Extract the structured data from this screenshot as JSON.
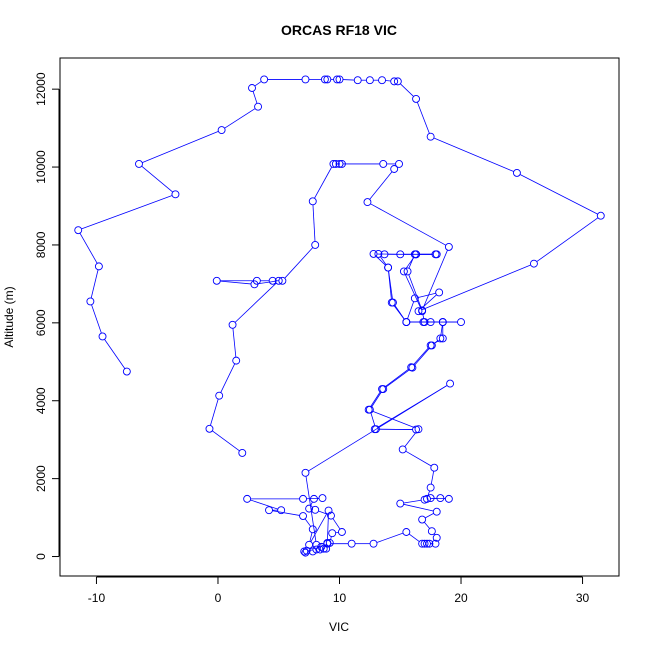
{
  "chart_data": {
    "type": "line",
    "title": "ORCAS RF18 VIC",
    "xlabel": "VIC",
    "ylabel": "Altitude (m)",
    "xlim": [
      -13,
      33
    ],
    "ylim": [
      -500,
      12800
    ],
    "x_ticks": [
      -10,
      0,
      10,
      20,
      30
    ],
    "y_ticks": [
      0,
      2000,
      4000,
      6000,
      8000,
      10000,
      12000
    ],
    "grid": false,
    "legend": "none",
    "colors": {
      "series": "#0000ff",
      "axis": "#000000"
    },
    "series": [
      {
        "points": [
          [
            -7.5,
            4750
          ],
          [
            -9.5,
            5650
          ],
          [
            -10.5,
            6550
          ],
          [
            -9.8,
            7450
          ],
          [
            -11.5,
            8380
          ],
          [
            -3.5,
            9300
          ],
          [
            -6.5,
            10080
          ],
          [
            0.3,
            10950
          ],
          [
            3.3,
            11550
          ],
          [
            2.8,
            12030
          ],
          [
            3.8,
            12250
          ],
          [
            7.2,
            12250
          ],
          [
            8.8,
            12250
          ],
          [
            9.0,
            12250
          ],
          [
            9.8,
            12250
          ],
          [
            10.0,
            12250
          ],
          [
            11.5,
            12230
          ],
          [
            12.5,
            12230
          ],
          [
            13.5,
            12230
          ],
          [
            14.5,
            12200
          ],
          [
            14.8,
            12200
          ],
          [
            16.3,
            11750
          ],
          [
            17.5,
            10780
          ],
          [
            24.6,
            9850
          ],
          [
            31.5,
            8750
          ],
          [
            26.0,
            7520
          ],
          [
            16.5,
            6300
          ],
          [
            18.2,
            6780
          ],
          [
            16.2,
            6630
          ],
          [
            15.5,
            6020
          ],
          [
            17.5,
            6020
          ],
          [
            20.0,
            6020
          ],
          [
            18.5,
            6020
          ],
          [
            17.0,
            6020
          ],
          [
            16.8,
            6300
          ],
          [
            15.3,
            7320
          ],
          [
            16.3,
            7760
          ],
          [
            17.9,
            7760
          ],
          [
            16.3,
            7760
          ],
          [
            13.7,
            7760
          ],
          [
            12.8,
            7770
          ],
          [
            14.0,
            7420
          ],
          [
            14.3,
            6520
          ],
          [
            15.5,
            6020
          ],
          [
            18.5,
            6020
          ],
          [
            18.5,
            5600
          ],
          [
            17.5,
            5420
          ],
          [
            15.9,
            4860
          ],
          [
            13.5,
            4300
          ],
          [
            12.4,
            3770
          ],
          [
            16.5,
            3270
          ],
          [
            15.2,
            2750
          ],
          [
            17.8,
            2280
          ],
          [
            17.5,
            1770
          ],
          [
            17.2,
            1480
          ],
          [
            18.3,
            1500
          ],
          [
            19.0,
            1480
          ],
          [
            17.5,
            1500
          ],
          [
            17.0,
            1460
          ],
          [
            15.0,
            1360
          ],
          [
            18.0,
            1150
          ],
          [
            16.8,
            950
          ],
          [
            17.6,
            650
          ],
          [
            18.0,
            480
          ],
          [
            17.9,
            330
          ],
          [
            17.2,
            330
          ],
          [
            17.0,
            330
          ],
          [
            17.4,
            330
          ],
          [
            16.8,
            330
          ],
          [
            15.5,
            630
          ],
          [
            12.8,
            330
          ],
          [
            11.0,
            330
          ],
          [
            9.0,
            330
          ],
          [
            8.7,
            200
          ],
          [
            8.1,
            180
          ],
          [
            7.3,
            150
          ],
          [
            7.1,
            130
          ],
          [
            7.2,
            100
          ],
          [
            7.8,
            130
          ],
          [
            8.4,
            180
          ],
          [
            8.9,
            200
          ],
          [
            8.5,
            250
          ],
          [
            9.2,
            350
          ],
          [
            9.4,
            600
          ],
          [
            10.2,
            630
          ],
          [
            9.3,
            1050
          ],
          [
            8.0,
            1200
          ],
          [
            7.5,
            1230
          ],
          [
            7.9,
            1480
          ],
          [
            8.6,
            1500
          ],
          [
            7.0,
            1480
          ],
          [
            2.4,
            1480
          ],
          [
            5.2,
            1190
          ],
          [
            4.2,
            1190
          ],
          [
            7.0,
            1040
          ],
          [
            7.8,
            700
          ],
          [
            7.5,
            300
          ],
          [
            9.1,
            1180
          ],
          [
            9.0,
            350
          ],
          [
            8.1,
            300
          ],
          [
            7.2,
            2150
          ],
          [
            19.1,
            4440
          ],
          [
            12.9,
            3270
          ],
          [
            16.3,
            3260
          ],
          [
            13.0,
            3270
          ],
          [
            12.5,
            3770
          ],
          [
            13.6,
            4300
          ],
          [
            16.0,
            4850
          ],
          [
            17.6,
            5420
          ],
          [
            18.3,
            5600
          ],
          [
            18.5,
            6020
          ],
          [
            16.9,
            6020
          ],
          [
            15.5,
            6020
          ],
          [
            14.4,
            6520
          ],
          [
            14.0,
            7420
          ],
          [
            13.2,
            7770
          ],
          [
            15.0,
            7760
          ],
          [
            18.0,
            7760
          ],
          [
            16.2,
            7760
          ],
          [
            15.6,
            7320
          ],
          [
            16.8,
            6320
          ],
          [
            19.0,
            7950
          ],
          [
            12.3,
            9100
          ],
          [
            14.5,
            9950
          ],
          [
            14.9,
            10080
          ],
          [
            13.6,
            10080
          ],
          [
            10.0,
            10080
          ],
          [
            9.7,
            10080
          ],
          [
            10.2,
            10080
          ],
          [
            9.5,
            10080
          ],
          [
            7.8,
            9120
          ],
          [
            8.0,
            8000
          ],
          [
            5.3,
            7080
          ],
          [
            4.5,
            7080
          ],
          [
            3.2,
            7080
          ],
          [
            -0.1,
            7080
          ],
          [
            3.0,
            6990
          ],
          [
            5.0,
            7080
          ],
          [
            1.2,
            5950
          ],
          [
            1.5,
            5030
          ],
          [
            0.1,
            4130
          ],
          [
            -0.7,
            3280
          ],
          [
            2.0,
            2660
          ]
        ]
      }
    ]
  }
}
